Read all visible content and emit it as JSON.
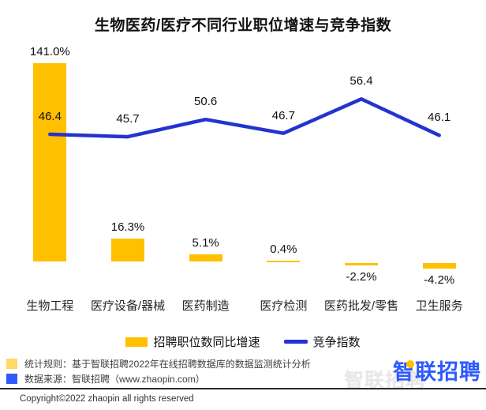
{
  "chart_data": {
    "type": "combo_bar_line",
    "title": "生物医药/医疗不同行业职位增速与竞争指数",
    "categories": [
      "生物工程",
      "医疗设备/器械",
      "医药制造",
      "医疗检测",
      "医药批发/零售",
      "卫生服务"
    ],
    "series": [
      {
        "name": "招聘职位数同比增速",
        "type": "bar",
        "unit": "%",
        "color": "#FFC000",
        "values": [
          141.0,
          16.3,
          5.1,
          0.4,
          -2.2,
          -4.2
        ],
        "labels": [
          "141.0%",
          "16.3%",
          "5.1%",
          "0.4%",
          "-2.2%",
          "-4.2%"
        ]
      },
      {
        "name": "竞争指数",
        "type": "line",
        "color": "#2433D0",
        "values": [
          46.4,
          45.7,
          50.6,
          46.7,
          56.4,
          46.1
        ],
        "labels": [
          "46.4",
          "45.7",
          "50.6",
          "46.7",
          "56.4",
          "46.1"
        ]
      }
    ],
    "legend_position": "bottom",
    "grid": false,
    "axes": "hidden"
  },
  "footer": {
    "note1": "统计规则：基于智联招聘2022年在线招聘数据库的数据监测统计分析",
    "note1_color": "#FFD966",
    "note2": "数据来源：智联招聘（www.zhaopin.com）",
    "note2_color": "#2E5BFF",
    "copyright": "Copyright©2022 zhaopin all rights reserved",
    "logo_text": "智联招聘"
  }
}
